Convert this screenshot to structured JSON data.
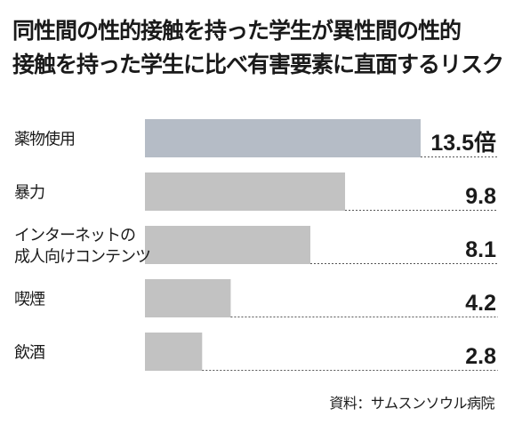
{
  "chart_data": {
    "type": "bar",
    "orientation": "horizontal",
    "title_lines": [
      "同性間の性的接触を持った学生が異性間の性的",
      "接触を持った学生に比べ有害要素に直面するリスク"
    ],
    "categories": [
      [
        "薬物使用"
      ],
      [
        "暴力"
      ],
      [
        "インターネットの",
        "成人向けコンテンツ"
      ],
      [
        "喫煙"
      ],
      [
        "飲酒"
      ]
    ],
    "values": [
      13.5,
      9.8,
      8.1,
      4.2,
      2.8
    ],
    "value_labels": [
      "13.5倍",
      "9.8",
      "8.1",
      "4.2",
      "2.8"
    ],
    "xlim": [
      0,
      13.5
    ],
    "grid": false,
    "colors": {
      "highlight": "#b5bcc6",
      "bar": "#c2c2c2",
      "leader": "#555555"
    },
    "source": "資料：サムスンソウル病院"
  }
}
